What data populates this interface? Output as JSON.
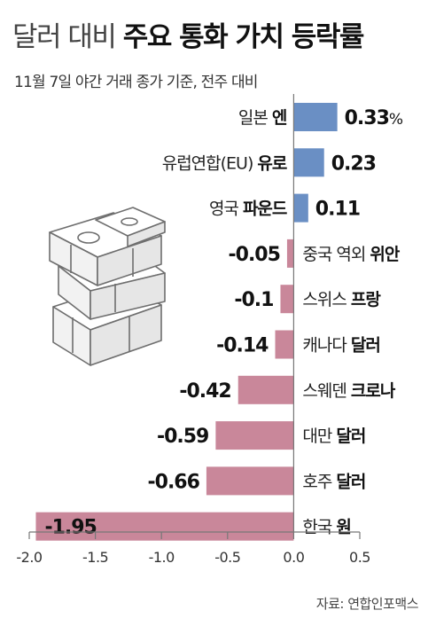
{
  "title": {
    "light": "달러 대비",
    "bold": "주요 통화 가치 등락률"
  },
  "subtitle": "11월 7일 야간 거래 종가 기준, 전주 대비",
  "source": "자료: 연합인포맥스",
  "colors": {
    "positive": "#6a8fc4",
    "negative": "#c9879a",
    "axis": "#777777"
  },
  "chart_data": {
    "type": "bar",
    "orientation": "horizontal",
    "title": "달러 대비 주요 통화 가치 등락률",
    "subtitle": "11월 7일 야간 거래 종가 기준, 전주 대비",
    "xlim": [
      -2.0,
      0.5
    ],
    "ticks": [
      -2.0,
      -1.5,
      -1.0,
      -0.5,
      0.0,
      0.5
    ],
    "tick_labels": [
      "-2.0",
      "-1.5",
      "-1.0",
      "-0.5",
      "0.0",
      "0.5"
    ],
    "grid": false,
    "legend": "none",
    "series": [
      {
        "values": [
          0.33,
          0.23,
          0.11,
          -0.05,
          -0.1,
          -0.14,
          -0.42,
          -0.59,
          -0.66,
          -1.95
        ]
      }
    ],
    "categories": [
      {
        "prefix": "일본",
        "name": "엔",
        "value_label": "0.33",
        "unit": "%"
      },
      {
        "prefix": "유럽연합(EU)",
        "name": "유로",
        "value_label": "0.23",
        "unit": ""
      },
      {
        "prefix": "영국",
        "name": "파운드",
        "value_label": "0.11",
        "unit": ""
      },
      {
        "prefix": "중국 역외",
        "name": "위안",
        "value_label": "-0.05",
        "unit": ""
      },
      {
        "prefix": "스위스",
        "name": "프랑",
        "value_label": "-0.1",
        "unit": ""
      },
      {
        "prefix": "캐나다",
        "name": "달러",
        "value_label": "-0.14",
        "unit": ""
      },
      {
        "prefix": "스웨덴",
        "name": "크로나",
        "value_label": "-0.42",
        "unit": ""
      },
      {
        "prefix": "대만",
        "name": "달러",
        "value_label": "-0.59",
        "unit": ""
      },
      {
        "prefix": "호주",
        "name": "달러",
        "value_label": "-0.66",
        "unit": ""
      },
      {
        "prefix": "한국",
        "name": "원",
        "value_label": "-1.95",
        "unit": ""
      }
    ]
  }
}
